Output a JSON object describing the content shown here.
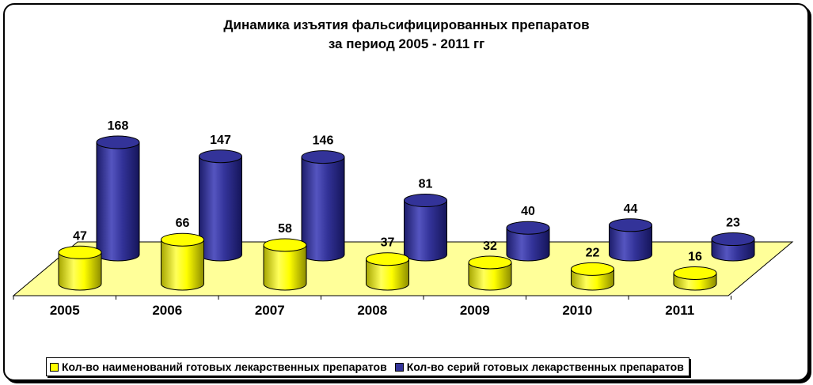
{
  "title": {
    "line1": "Динамика изъятия фальсифицированных препаратов",
    "line2": "за период 2005 - 2011 гг"
  },
  "chart_data": {
    "type": "bar",
    "categories": [
      "2005",
      "2006",
      "2007",
      "2008",
      "2009",
      "2010",
      "2011"
    ],
    "series": [
      {
        "name": "Кол-во наименований готовых лекарственных препаратов",
        "values": [
          47,
          66,
          58,
          37,
          32,
          22,
          16
        ],
        "color": "#ffff00"
      },
      {
        "name": "Кол-во серий готовых лекарственных препаратов",
        "values": [
          168,
          147,
          146,
          81,
          40,
          44,
          23
        ],
        "color": "#333399"
      }
    ],
    "ylim": [
      0,
      180
    ],
    "grid": false,
    "legend_position": "bottom",
    "floor_color": "#ffff99"
  }
}
